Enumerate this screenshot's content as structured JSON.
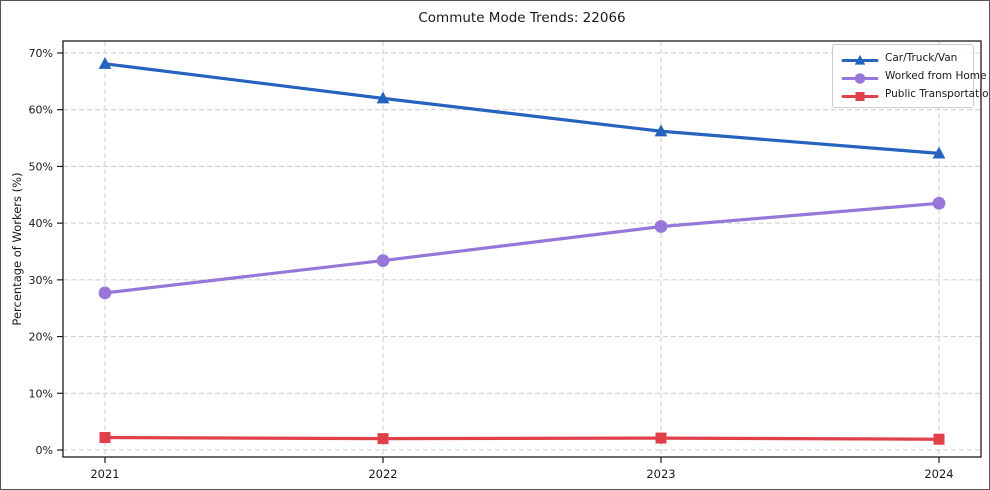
{
  "chart_data": {
    "type": "line",
    "title": "Commute Mode Trends: 22066",
    "xlabel": "",
    "ylabel": "Percentage of Workers (%)",
    "categories": [
      "2021",
      "2022",
      "2023",
      "2024"
    ],
    "series": [
      {
        "name": "Car/Truck/Van",
        "marker": "triangle",
        "color": "#2563bf",
        "values": [
          68.1,
          62.0,
          56.2,
          52.3
        ]
      },
      {
        "name": "Worked from Home",
        "marker": "circle",
        "color": "#9776d9",
        "values": [
          27.7,
          33.4,
          39.4,
          43.5
        ]
      },
      {
        "name": "Public Transportation",
        "marker": "square",
        "color": "#e04049",
        "values": [
          2.2,
          2.0,
          2.1,
          1.9
        ]
      }
    ],
    "ylim": [
      0,
      70
    ],
    "ytick_step": 10,
    "ytick_labels": [
      "0%",
      "10%",
      "20%",
      "30%",
      "40%",
      "50%",
      "60%",
      "70%"
    ],
    "grid": true,
    "grid_style": "dashed",
    "legend_position": "upper right",
    "colors": {
      "grid": "#cccccc",
      "frame": "#1c1c1c",
      "text": "#1a1a1a",
      "background": "#ffffff"
    }
  }
}
